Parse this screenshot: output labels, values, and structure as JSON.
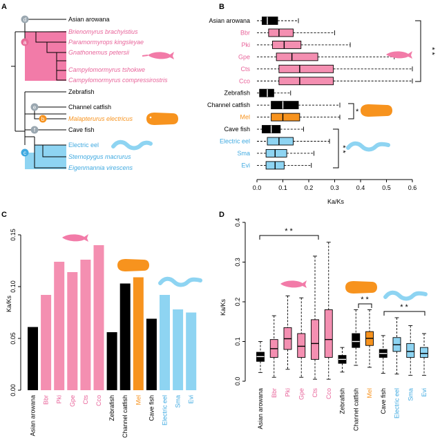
{
  "colors": {
    "pink": "#F48FB1",
    "orange": "#F7931E",
    "blue": "#8ED4F2",
    "black": "#000000",
    "node_grey": "#9AA7B0",
    "tree_pink": "#F27BA8",
    "tree_orange": "#F7931E",
    "tree_blue": "#8ED4F2"
  },
  "species": [
    {
      "abbr": "Asian arowana",
      "name": "Asian arowana",
      "group": "black"
    },
    {
      "abbr": "Bbr",
      "name": "Brienomyrus brachyistius",
      "group": "pink"
    },
    {
      "abbr": "Pki",
      "name": "Paramormyrops kingsleyae",
      "group": "pink"
    },
    {
      "abbr": "Gpe",
      "name": "Gnathonemus petersii",
      "group": "pink"
    },
    {
      "abbr": "Cts",
      "name": "Campylomormyrus tshokwe",
      "group": "pink"
    },
    {
      "abbr": "Cco",
      "name": "Campylomormyrus compressirostris",
      "group": "pink"
    },
    {
      "abbr": "Zebrafish",
      "name": "Zebrafish",
      "group": "black"
    },
    {
      "abbr": "Channel catfish",
      "name": "Channel catfish",
      "group": "black"
    },
    {
      "abbr": "Mel",
      "name": "Malapterurus electricus",
      "group": "orange"
    },
    {
      "abbr": "Cave fish",
      "name": "Cave fish",
      "group": "black"
    },
    {
      "abbr": "Electric eel",
      "name": "Electric eel",
      "group": "blue"
    },
    {
      "abbr": "Sma",
      "name": "Sternopygus macrurus",
      "group": "blue"
    },
    {
      "abbr": "Evi",
      "name": "Eigenmannia virescens",
      "group": "blue"
    }
  ],
  "panels": {
    "a": "A",
    "b": "B",
    "c": "C",
    "d": "D"
  },
  "tree": {
    "nodes": {
      "a": "a",
      "b": "b",
      "c": "c",
      "d": "d",
      "e": "e",
      "f": "f"
    }
  },
  "sig": "* *",
  "chart_data": [
    {
      "panel": "B",
      "type": "boxplot",
      "orientation": "horizontal",
      "xlabel": "Ka/Ks",
      "xlim": [
        0,
        0.6
      ],
      "xticks": [
        0.0,
        0.1,
        0.2,
        0.3,
        0.4,
        0.5,
        0.6
      ],
      "categories": [
        "Asian arowana",
        "Bbr",
        "Pki",
        "Gpe",
        "Cts",
        "Cco",
        "Zebrafish",
        "Channel catfish",
        "Mel",
        "Cave fish",
        "Electric eel",
        "Sma",
        "Evi"
      ],
      "boxes": [
        {
          "min": 0,
          "q1": 0.02,
          "median": 0.04,
          "q3": 0.08,
          "max": 0.16
        },
        {
          "min": 0,
          "q1": 0.045,
          "median": 0.085,
          "q3": 0.14,
          "max": 0.3
        },
        {
          "min": 0,
          "q1": 0.06,
          "median": 0.105,
          "q3": 0.17,
          "max": 0.36
        },
        {
          "min": 0,
          "q1": 0.075,
          "median": 0.135,
          "q3": 0.235,
          "max": 0.53
        },
        {
          "min": 0,
          "q1": 0.085,
          "median": 0.165,
          "q3": 0.295,
          "max": 0.6
        },
        {
          "min": 0,
          "q1": 0.085,
          "median": 0.165,
          "q3": 0.295,
          "max": 0.6
        },
        {
          "min": 0,
          "q1": 0.01,
          "median": 0.04,
          "q3": 0.065,
          "max": 0.13
        },
        {
          "min": 0,
          "q1": 0.055,
          "median": 0.1,
          "q3": 0.16,
          "max": 0.32
        },
        {
          "min": 0,
          "q1": 0.055,
          "median": 0.1,
          "q3": 0.165,
          "max": 0.32
        },
        {
          "min": 0,
          "q1": 0.02,
          "median": 0.055,
          "q3": 0.09,
          "max": 0.18
        },
        {
          "min": 0,
          "q1": 0.04,
          "median": 0.085,
          "q3": 0.14,
          "max": 0.28
        },
        {
          "min": 0,
          "q1": 0.035,
          "median": 0.07,
          "q3": 0.115,
          "max": 0.22
        },
        {
          "min": 0,
          "q1": 0.035,
          "median": 0.07,
          "q3": 0.105,
          "max": 0.21
        }
      ]
    },
    {
      "panel": "C",
      "type": "bar",
      "ylabel": "Ka/Ks",
      "ylim": [
        0,
        0.15
      ],
      "yticks": [
        0.0,
        0.05,
        0.1,
        0.15
      ],
      "categories": [
        "Asian arowana",
        "Bbr",
        "Pki",
        "Gpe",
        "Cts",
        "Cco",
        "Zebrafish",
        "Channel catfish",
        "Mel",
        "Cave fish",
        "Electric eel",
        "Sma",
        "Evi"
      ],
      "values": [
        0.061,
        0.092,
        0.124,
        0.114,
        0.126,
        0.14,
        0.056,
        0.103,
        0.109,
        0.069,
        0.092,
        0.078,
        0.075
      ]
    },
    {
      "panel": "D",
      "type": "boxplot",
      "orientation": "vertical",
      "ylabel": "Ka/Ks",
      "ylim": [
        0,
        0.4
      ],
      "yticks": [
        0.0,
        0.1,
        0.2,
        0.3,
        0.4
      ],
      "categories": [
        "Asian arowana",
        "Bbr",
        "Pki",
        "Gpe",
        "Cts",
        "Cco",
        "Zebrafish",
        "Channel catfish",
        "Mel",
        "Cave fish",
        "Electric eel",
        "Sma",
        "Evi"
      ],
      "boxes": [
        {
          "min": 0.022,
          "q1": 0.05,
          "median": 0.062,
          "q3": 0.073,
          "max": 0.1
        },
        {
          "min": 0.01,
          "q1": 0.06,
          "median": 0.082,
          "q3": 0.105,
          "max": 0.165
        },
        {
          "min": 0.03,
          "q1": 0.08,
          "median": 0.107,
          "q3": 0.135,
          "max": 0.215
        },
        {
          "min": 0.01,
          "q1": 0.06,
          "median": 0.088,
          "q3": 0.12,
          "max": 0.21
        },
        {
          "min": 0.005,
          "q1": 0.055,
          "median": 0.095,
          "q3": 0.155,
          "max": 0.315
        },
        {
          "min": 0.005,
          "q1": 0.06,
          "median": 0.105,
          "q3": 0.18,
          "max": 0.35
        },
        {
          "min": 0.023,
          "q1": 0.045,
          "median": 0.055,
          "q3": 0.065,
          "max": 0.085
        },
        {
          "min": 0.04,
          "q1": 0.085,
          "median": 0.1,
          "q3": 0.12,
          "max": 0.18
        },
        {
          "min": 0.035,
          "q1": 0.09,
          "median": 0.108,
          "q3": 0.125,
          "max": 0.18
        },
        {
          "min": 0.02,
          "q1": 0.06,
          "median": 0.07,
          "q3": 0.08,
          "max": 0.115
        },
        {
          "min": 0.018,
          "q1": 0.075,
          "median": 0.092,
          "q3": 0.11,
          "max": 0.16
        },
        {
          "min": 0.015,
          "q1": 0.06,
          "median": 0.075,
          "q3": 0.095,
          "max": 0.14
        },
        {
          "min": 0.015,
          "q1": 0.06,
          "median": 0.07,
          "q3": 0.085,
          "max": 0.12
        }
      ]
    }
  ]
}
